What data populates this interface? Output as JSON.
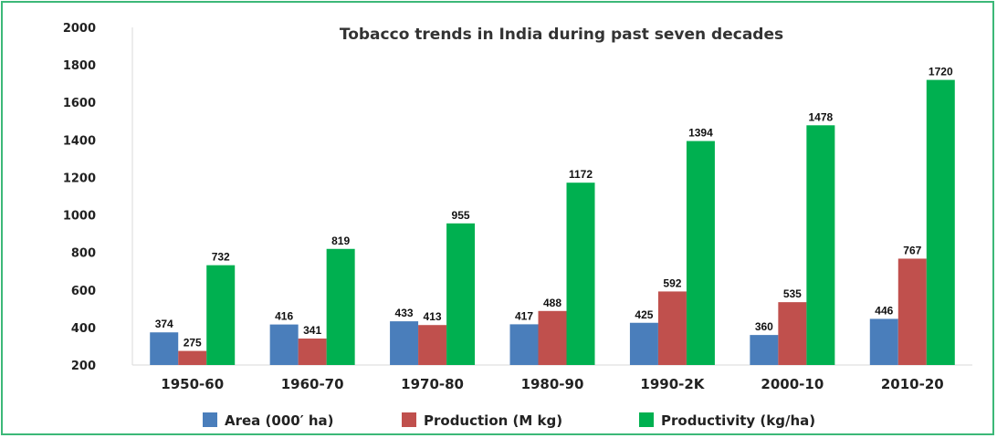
{
  "chart_data": {
    "type": "bar",
    "title": "Tobacco trends in India during past seven decades",
    "xlabel": "",
    "ylabel": "",
    "ylim": [
      200,
      2000
    ],
    "yticks": [
      200,
      400,
      600,
      800,
      1000,
      1200,
      1400,
      1600,
      1800,
      2000
    ],
    "categories": [
      "1950-60",
      "1960-70",
      "1970-80",
      "1980-90",
      "1990-2K",
      "2000-10",
      "2010-20"
    ],
    "series": [
      {
        "name": "Area (000′ ha)",
        "color": "#4a7ebb",
        "values": [
          374,
          416,
          433,
          417,
          425,
          360,
          446
        ]
      },
      {
        "name": "Production (M kg)",
        "color": "#c0504d",
        "values": [
          275,
          341,
          413,
          488,
          592,
          535,
          767
        ]
      },
      {
        "name": "Productivity (kg/ha)",
        "color": "#00b050",
        "values": [
          732,
          819,
          955,
          1172,
          1394,
          1478,
          1720
        ]
      }
    ],
    "legend_position": "bottom",
    "data_labels": true,
    "grid": false
  },
  "frame_color": "#3cb878"
}
